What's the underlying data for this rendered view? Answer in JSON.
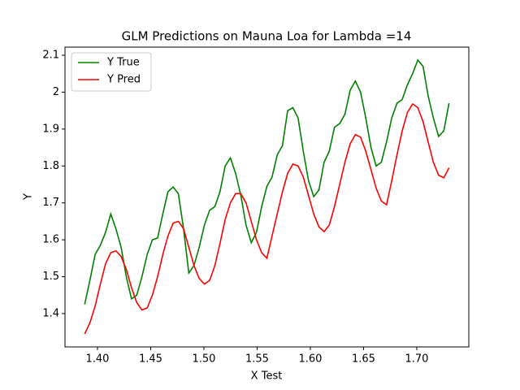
{
  "chart_data": {
    "type": "line",
    "title": "GLM Predictions on Mauna Loa for Lambda =14",
    "xlabel": "X Test",
    "ylabel": "Y",
    "x": [
      1.388,
      1.3929,
      1.3978,
      1.4027,
      1.4076,
      1.4125,
      1.4173,
      1.4222,
      1.4271,
      1.432,
      1.4369,
      1.4418,
      1.4467,
      1.4516,
      1.4565,
      1.4614,
      1.4662,
      1.4711,
      1.476,
      1.4809,
      1.4858,
      1.4907,
      1.4956,
      1.5005,
      1.5054,
      1.5103,
      1.5151,
      1.52,
      1.5249,
      1.5298,
      1.5347,
      1.5396,
      1.5445,
      1.5494,
      1.5543,
      1.5592,
      1.564,
      1.5689,
      1.5738,
      1.5787,
      1.5836,
      1.5885,
      1.5934,
      1.5983,
      1.6032,
      1.6081,
      1.6129,
      1.6178,
      1.6227,
      1.6276,
      1.6325,
      1.6374,
      1.6423,
      1.6472,
      1.6521,
      1.657,
      1.6618,
      1.6667,
      1.6716,
      1.6765,
      1.6814,
      1.6863,
      1.6912,
      1.6961,
      1.701,
      1.7059,
      1.7107,
      1.7156,
      1.7205,
      1.7254,
      1.7303
    ],
    "series": [
      {
        "name": "Y True",
        "color": "#008000",
        "values": [
          1.425,
          1.49,
          1.56,
          1.585,
          1.62,
          1.67,
          1.63,
          1.58,
          1.5,
          1.44,
          1.45,
          1.5,
          1.56,
          1.6,
          1.605,
          1.67,
          1.73,
          1.743,
          1.725,
          1.63,
          1.51,
          1.53,
          1.58,
          1.64,
          1.68,
          1.69,
          1.73,
          1.8,
          1.822,
          1.78,
          1.72,
          1.64,
          1.592,
          1.62,
          1.69,
          1.745,
          1.77,
          1.83,
          1.855,
          1.95,
          1.958,
          1.93,
          1.84,
          1.76,
          1.717,
          1.735,
          1.81,
          1.84,
          1.905,
          1.915,
          1.94,
          2.005,
          2.03,
          2.0,
          1.93,
          1.85,
          1.8,
          1.81,
          1.865,
          1.93,
          1.97,
          1.98,
          2.02,
          2.05,
          2.087,
          2.07,
          1.99,
          1.93,
          1.88,
          1.895,
          1.97
        ]
      },
      {
        "name": "Y Pred",
        "color": "#ff0000",
        "values": [
          1.345,
          1.375,
          1.42,
          1.48,
          1.535,
          1.565,
          1.57,
          1.555,
          1.52,
          1.47,
          1.43,
          1.41,
          1.415,
          1.45,
          1.5,
          1.56,
          1.61,
          1.645,
          1.65,
          1.63,
          1.58,
          1.53,
          1.495,
          1.48,
          1.49,
          1.53,
          1.59,
          1.655,
          1.7,
          1.725,
          1.725,
          1.7,
          1.65,
          1.6,
          1.565,
          1.55,
          1.61,
          1.67,
          1.73,
          1.78,
          1.805,
          1.8,
          1.77,
          1.72,
          1.67,
          1.635,
          1.622,
          1.64,
          1.69,
          1.75,
          1.81,
          1.86,
          1.885,
          1.878,
          1.84,
          1.79,
          1.74,
          1.705,
          1.695,
          1.76,
          1.83,
          1.895,
          1.945,
          1.968,
          1.958,
          1.92,
          1.865,
          1.81,
          1.775,
          1.768,
          1.795
        ]
      }
    ],
    "xlim": [
      1.3695,
      1.7489
    ],
    "ylim": [
      1.3097,
      2.122
    ],
    "xticks": [
      {
        "value": 1.4,
        "label": "1.40"
      },
      {
        "value": 1.45,
        "label": "1.45"
      },
      {
        "value": 1.5,
        "label": "1.50"
      },
      {
        "value": 1.55,
        "label": "1.55"
      },
      {
        "value": 1.6,
        "label": "1.60"
      },
      {
        "value": 1.65,
        "label": "1.65"
      },
      {
        "value": 1.7,
        "label": "1.70"
      }
    ],
    "yticks": [
      1.4,
      1.5,
      1.6,
      1.7,
      1.8,
      1.9,
      2.0,
      2.1
    ],
    "legend": "upper left",
    "grid": false
  }
}
